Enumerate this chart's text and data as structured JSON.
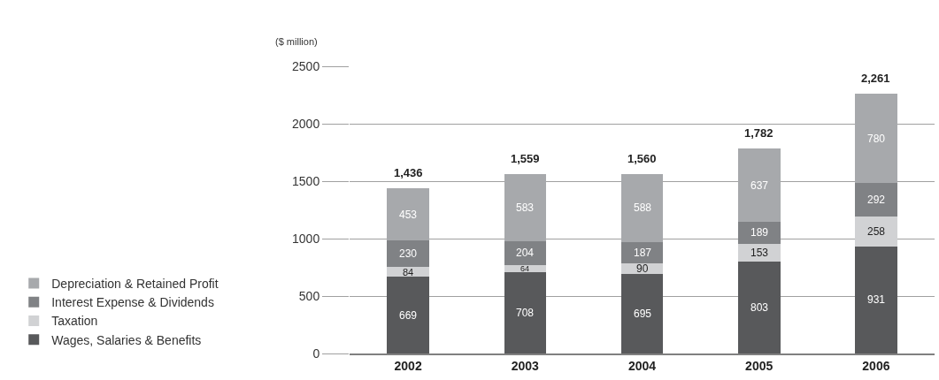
{
  "chart_data": {
    "type": "bar",
    "stacked": true,
    "ylabel": "($ million)",
    "categories": [
      "2002",
      "2003",
      "2004",
      "2005",
      "2006"
    ],
    "series": [
      {
        "name": "Wages, Salaries & Benefits",
        "color": "#58595b",
        "values": [
          669,
          708,
          695,
          803,
          931
        ]
      },
      {
        "name": "Taxation",
        "color": "#d1d2d4",
        "values": [
          84,
          64,
          90,
          153,
          258
        ]
      },
      {
        "name": "Interest Expense & Dividends",
        "color": "#808285",
        "values": [
          230,
          204,
          187,
          189,
          292
        ]
      },
      {
        "name": "Depreciation & Retained Profit",
        "color": "#a7a9ac",
        "values": [
          453,
          583,
          588,
          637,
          780
        ]
      }
    ],
    "ylim": [
      0,
      2500
    ],
    "yticks": [
      0,
      500,
      1000,
      1500,
      2000,
      2500
    ],
    "grid": "y",
    "legend": "left",
    "data_labels": true,
    "totals": [
      "1,436",
      "1,559",
      "1,560",
      "1,782",
      "2,261"
    ]
  }
}
